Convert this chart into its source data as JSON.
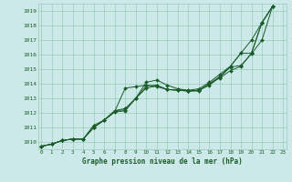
{
  "xlabel": "Graphe pression niveau de la mer (hPa)",
  "x_ticks": [
    0,
    1,
    2,
    3,
    4,
    5,
    6,
    7,
    8,
    9,
    10,
    11,
    12,
    13,
    14,
    15,
    16,
    17,
    18,
    19,
    20,
    21,
    22,
    23
  ],
  "y_ticks": [
    1010,
    1011,
    1012,
    1013,
    1014,
    1015,
    1016,
    1017,
    1018,
    1019
  ],
  "xlim": [
    -0.3,
    23.3
  ],
  "ylim": [
    1009.5,
    1019.5
  ],
  "bg_color": "#cce8e8",
  "grid_color": "#99ccbb",
  "line_color": "#1a5c2a",
  "series": [
    [
      1009.7,
      1009.85,
      1010.1,
      1010.2,
      1010.2,
      1011.0,
      1011.5,
      1012.05,
      1012.15,
      1013.0,
      1013.85,
      1013.9,
      1013.6,
      1013.55,
      1013.5,
      1013.55,
      1014.0,
      1014.4,
      1014.9,
      1015.2,
      1016.1,
      1018.2,
      1019.3
    ],
    [
      1009.7,
      1009.85,
      1010.1,
      1010.2,
      1010.2,
      1011.0,
      1011.5,
      1012.15,
      1012.2,
      1013.0,
      1013.7,
      1013.85,
      1013.6,
      1013.55,
      1013.5,
      1013.55,
      1013.9,
      1014.45,
      1015.15,
      1015.25,
      1016.05,
      1017.0,
      1019.3
    ],
    [
      1009.7,
      1009.85,
      1010.1,
      1010.2,
      1010.2,
      1011.0,
      1011.5,
      1012.15,
      1012.3,
      1013.0,
      1014.1,
      1014.25,
      1013.9,
      1013.65,
      1013.55,
      1013.65,
      1014.1,
      1014.65,
      1015.2,
      1016.1,
      1017.0,
      1018.2,
      1019.3
    ],
    [
      1009.7,
      1009.85,
      1010.1,
      1010.2,
      1010.2,
      1011.15,
      1011.5,
      1012.1,
      1013.7,
      1013.8,
      1013.9,
      1013.8,
      1013.6,
      1013.6,
      1013.5,
      1013.5,
      1014.0,
      1014.5,
      1015.2,
      1016.1,
      1016.1,
      1018.2,
      1019.3
    ]
  ]
}
